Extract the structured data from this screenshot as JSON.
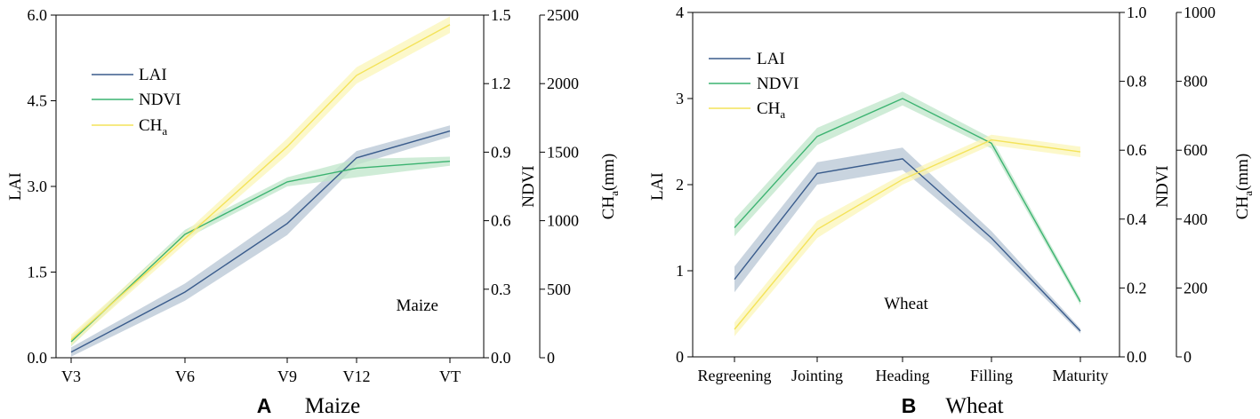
{
  "chart_data": [
    {
      "type": "line",
      "panel_letter": "A",
      "panel_title": "Maize",
      "annotation": "Maize",
      "categories": [
        "V3",
        "V6",
        "V9",
        "V12",
        "VT"
      ],
      "axes": {
        "lai": {
          "label": "LAI",
          "ylim": [
            0,
            6
          ],
          "ticks": [
            "0.0",
            "1.5",
            "3.0",
            "4.5",
            "6.0"
          ]
        },
        "ndvi": {
          "label": "NDVI",
          "ylim": [
            0,
            1.5
          ],
          "ticks": [
            "0.0",
            "0.3",
            "0.6",
            "0.9",
            "1.2",
            "1.5"
          ]
        },
        "cha": {
          "label_main": "CH",
          "label_sub": "a",
          "label_unit": "(mm)",
          "ylim": [
            0,
            2500
          ],
          "ticks": [
            "0",
            "500",
            "1000",
            "1500",
            "2000",
            "2500"
          ]
        }
      },
      "series": [
        {
          "key": "lai",
          "name": "LAI",
          "name_sub": "",
          "axis": "lai",
          "color": "#3a5c8c",
          "band": "#b7c5d4",
          "values": [
            0.1,
            1.15,
            2.35,
            3.5,
            3.97
          ],
          "lower": [
            0.02,
            1.0,
            2.15,
            3.38,
            3.87
          ],
          "upper": [
            0.18,
            1.3,
            2.55,
            3.62,
            4.07
          ]
        },
        {
          "key": "ndvi",
          "name": "NDVI",
          "name_sub": "",
          "axis": "ndvi",
          "color": "#3cb371",
          "band": "#bfe5c9",
          "values": [
            0.07,
            0.54,
            0.77,
            0.83,
            0.86
          ],
          "lower": [
            0.05,
            0.52,
            0.75,
            0.79,
            0.84
          ],
          "upper": [
            0.09,
            0.56,
            0.79,
            0.87,
            0.88
          ]
        },
        {
          "key": "cha",
          "name": "CH",
          "name_sub": "a",
          "axis": "cha",
          "color": "#f4e35a",
          "band": "#fbf5b8",
          "values": [
            130,
            870,
            1540,
            2060,
            2430
          ],
          "lower": [
            90,
            830,
            1480,
            2000,
            2370
          ],
          "upper": [
            170,
            910,
            1600,
            2120,
            2490
          ]
        }
      ]
    },
    {
      "type": "line",
      "panel_letter": "B",
      "panel_title": "Wheat",
      "annotation": "Wheat",
      "categories": [
        "Regreening",
        "Jointing",
        "Heading",
        "Filling",
        "Maturity"
      ],
      "axes": {
        "lai": {
          "label": "LAI",
          "ylim": [
            0,
            4
          ],
          "ticks": [
            "0",
            "1",
            "2",
            "3",
            "4"
          ]
        },
        "ndvi": {
          "label": "NDVI",
          "ylim": [
            0,
            1
          ],
          "ticks": [
            "0.0",
            "0.2",
            "0.4",
            "0.6",
            "0.8",
            "1.0"
          ]
        },
        "cha": {
          "label_main": "CH",
          "label_sub": "a",
          "label_unit": "(mm)",
          "ylim": [
            0,
            1000
          ],
          "ticks": [
            "0",
            "200",
            "400",
            "600",
            "800",
            "1000"
          ]
        }
      },
      "series": [
        {
          "key": "lai",
          "name": "LAI",
          "name_sub": "",
          "axis": "lai",
          "color": "#3a5c8c",
          "band": "#b7c5d4",
          "values": [
            0.9,
            2.13,
            2.3,
            1.38,
            0.3
          ],
          "lower": [
            0.75,
            2.0,
            2.17,
            1.3,
            0.27
          ],
          "upper": [
            1.05,
            2.26,
            2.43,
            1.46,
            0.33
          ]
        },
        {
          "key": "ndvi",
          "name": "NDVI",
          "name_sub": "",
          "axis": "ndvi",
          "color": "#3cb371",
          "band": "#bfe5c9",
          "values": [
            0.375,
            0.64,
            0.75,
            0.62,
            0.16
          ],
          "lower": [
            0.35,
            0.615,
            0.73,
            0.605,
            0.15
          ],
          "upper": [
            0.4,
            0.665,
            0.77,
            0.635,
            0.17
          ]
        },
        {
          "key": "cha",
          "name": "CH",
          "name_sub": "a",
          "axis": "cha",
          "color": "#f4e35a",
          "band": "#fbf5b8",
          "values": [
            80,
            370,
            515,
            630,
            595
          ],
          "lower": [
            60,
            345,
            500,
            615,
            580
          ],
          "upper": [
            100,
            395,
            530,
            645,
            610
          ]
        }
      ]
    }
  ]
}
